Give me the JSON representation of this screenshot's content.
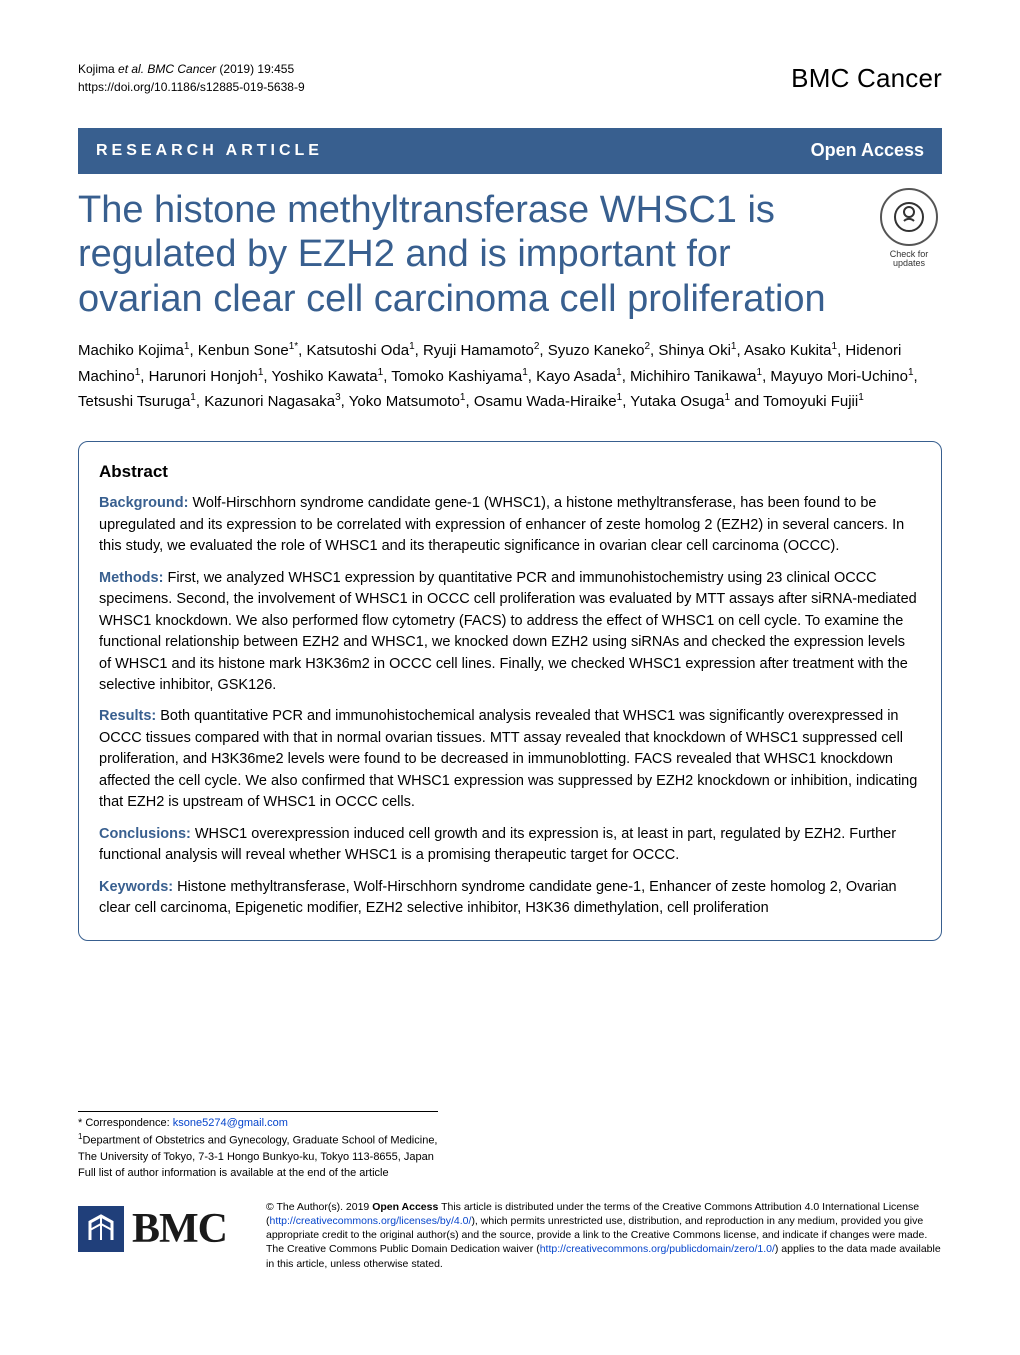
{
  "colors": {
    "brand_blue": "#385f8f",
    "link_blue": "#0645cc",
    "text": "#000000",
    "background": "#ffffff",
    "bmc_logo_bg": "#203f7a"
  },
  "typography": {
    "title_fontsize": 38,
    "body_fontsize": 14,
    "authors_fontsize": 15,
    "abstract_fontsize": 14.5,
    "footer_fontsize": 10.5,
    "journal_brand_fontsize": 26
  },
  "running_head": {
    "citation_line1": "Kojima et al. BMC Cancer          (2019) 19:455",
    "doi_line": "https://doi.org/10.1186/s12885-019-5638-9"
  },
  "journal_brand": "BMC Cancer",
  "article_type": "RESEARCH ARTICLE",
  "open_access_label": "Open Access",
  "crossmark_label": "Check for updates",
  "title": "The histone methyltransferase WHSC1 is regulated by EZH2 and is important for ovarian clear cell carcinoma cell proliferation",
  "authors_html": "Machiko Kojima<sup>1</sup>, Kenbun Sone<sup>1*</sup>, Katsutoshi Oda<sup>1</sup>, Ryuji Hamamoto<sup>2</sup>, Syuzo Kaneko<sup>2</sup>, Shinya Oki<sup>1</sup>, Asako Kukita<sup>1</sup>, Hidenori Machino<sup>1</sup>, Harunori Honjoh<sup>1</sup>, Yoshiko Kawata<sup>1</sup>, Tomoko Kashiyama<sup>1</sup>, Kayo Asada<sup>1</sup>, Michihiro Tanikawa<sup>1</sup>, Mayuyo Mori-Uchino<sup>1</sup>, Tetsushi Tsuruga<sup>1</sup>, Kazunori Nagasaka<sup>3</sup>, Yoko Matsumoto<sup>1</sup>, Osamu Wada-Hiraike<sup>1</sup>, Yutaka Osuga<sup>1</sup> and Tomoyuki Fujii<sup>1</sup>",
  "abstract": {
    "heading": "Abstract",
    "sections": [
      {
        "label": "Background:",
        "text": " Wolf-Hirschhorn syndrome candidate gene-1 (WHSC1), a histone methyltransferase, has been found to be upregulated and its expression to be correlated with expression of enhancer of zeste homolog 2 (EZH2) in several cancers. In this study, we evaluated the role of WHSC1 and its therapeutic significance in ovarian clear cell carcinoma (OCCC)."
      },
      {
        "label": "Methods:",
        "text": " First, we analyzed WHSC1 expression by quantitative PCR and immunohistochemistry using 23 clinical OCCC specimens. Second, the involvement of WHSC1 in OCCC cell proliferation was evaluated by MTT assays after siRNA-mediated WHSC1 knockdown. We also performed flow cytometry (FACS) to address the effect of WHSC1 on cell cycle. To examine the functional relationship between EZH2 and WHSC1, we knocked down EZH2 using siRNAs and checked the expression levels of WHSC1 and its histone mark H3K36m2 in OCCC cell lines. Finally, we checked WHSC1 expression after treatment with the selective inhibitor, GSK126."
      },
      {
        "label": "Results:",
        "text": " Both quantitative PCR and immunohistochemical analysis revealed that WHSC1 was significantly overexpressed in OCCC tissues compared with that in normal ovarian tissues. MTT assay revealed that knockdown of WHSC1 suppressed cell proliferation, and H3K36me2 levels were found to be decreased in immunoblotting. FACS revealed that WHSC1 knockdown affected the cell cycle. We also confirmed that WHSC1 expression was suppressed by EZH2 knockdown or inhibition, indicating that EZH2 is upstream of WHSC1 in OCCC cells."
      },
      {
        "label": "Conclusions:",
        "text": " WHSC1 overexpression induced cell growth and its expression is, at least in part, regulated by EZH2. Further functional analysis will reveal whether WHSC1 is a promising therapeutic target for OCCC."
      }
    ],
    "keywords_label": "Keywords:",
    "keywords_text": " Histone methyltransferase, Wolf-Hirschhorn syndrome candidate gene-1, Enhancer of zeste homolog 2, Ovarian clear cell carcinoma, Epigenetic modifier, EZH2 selective inhibitor, H3K36 dimethylation, cell proliferation"
  },
  "correspondence": {
    "label": "* Correspondence: ",
    "email": "ksone5274@gmail.com",
    "affiliation_line1": "Department of Obstetrics and Gynecology, Graduate School of Medicine,",
    "affiliation_line2": "The University of Tokyo, 7-3-1 Hongo Bunkyo-ku, Tokyo 113-8655, Japan",
    "full_list_note": "Full list of author information is available at the end of the article",
    "affil_sup": "1"
  },
  "bmc_logo_text": "BMC",
  "license": {
    "prefix": "© The Author(s). 2019 ",
    "open_access_bold": "Open Access",
    "body1": " This article is distributed under the terms of the Creative Commons Attribution 4.0 International License (",
    "cc_url": "http://creativecommons.org/licenses/by/4.0/",
    "body2": "), which permits unrestricted use, distribution, and reproduction in any medium, provided you give appropriate credit to the original author(s) and the source, provide a link to the Creative Commons license, and indicate if changes were made. The Creative Commons Public Domain Dedication waiver (",
    "pd_url": "http://creativecommons.org/publicdomain/zero/1.0/",
    "body3": ") applies to the data made available in this article, unless otherwise stated."
  }
}
